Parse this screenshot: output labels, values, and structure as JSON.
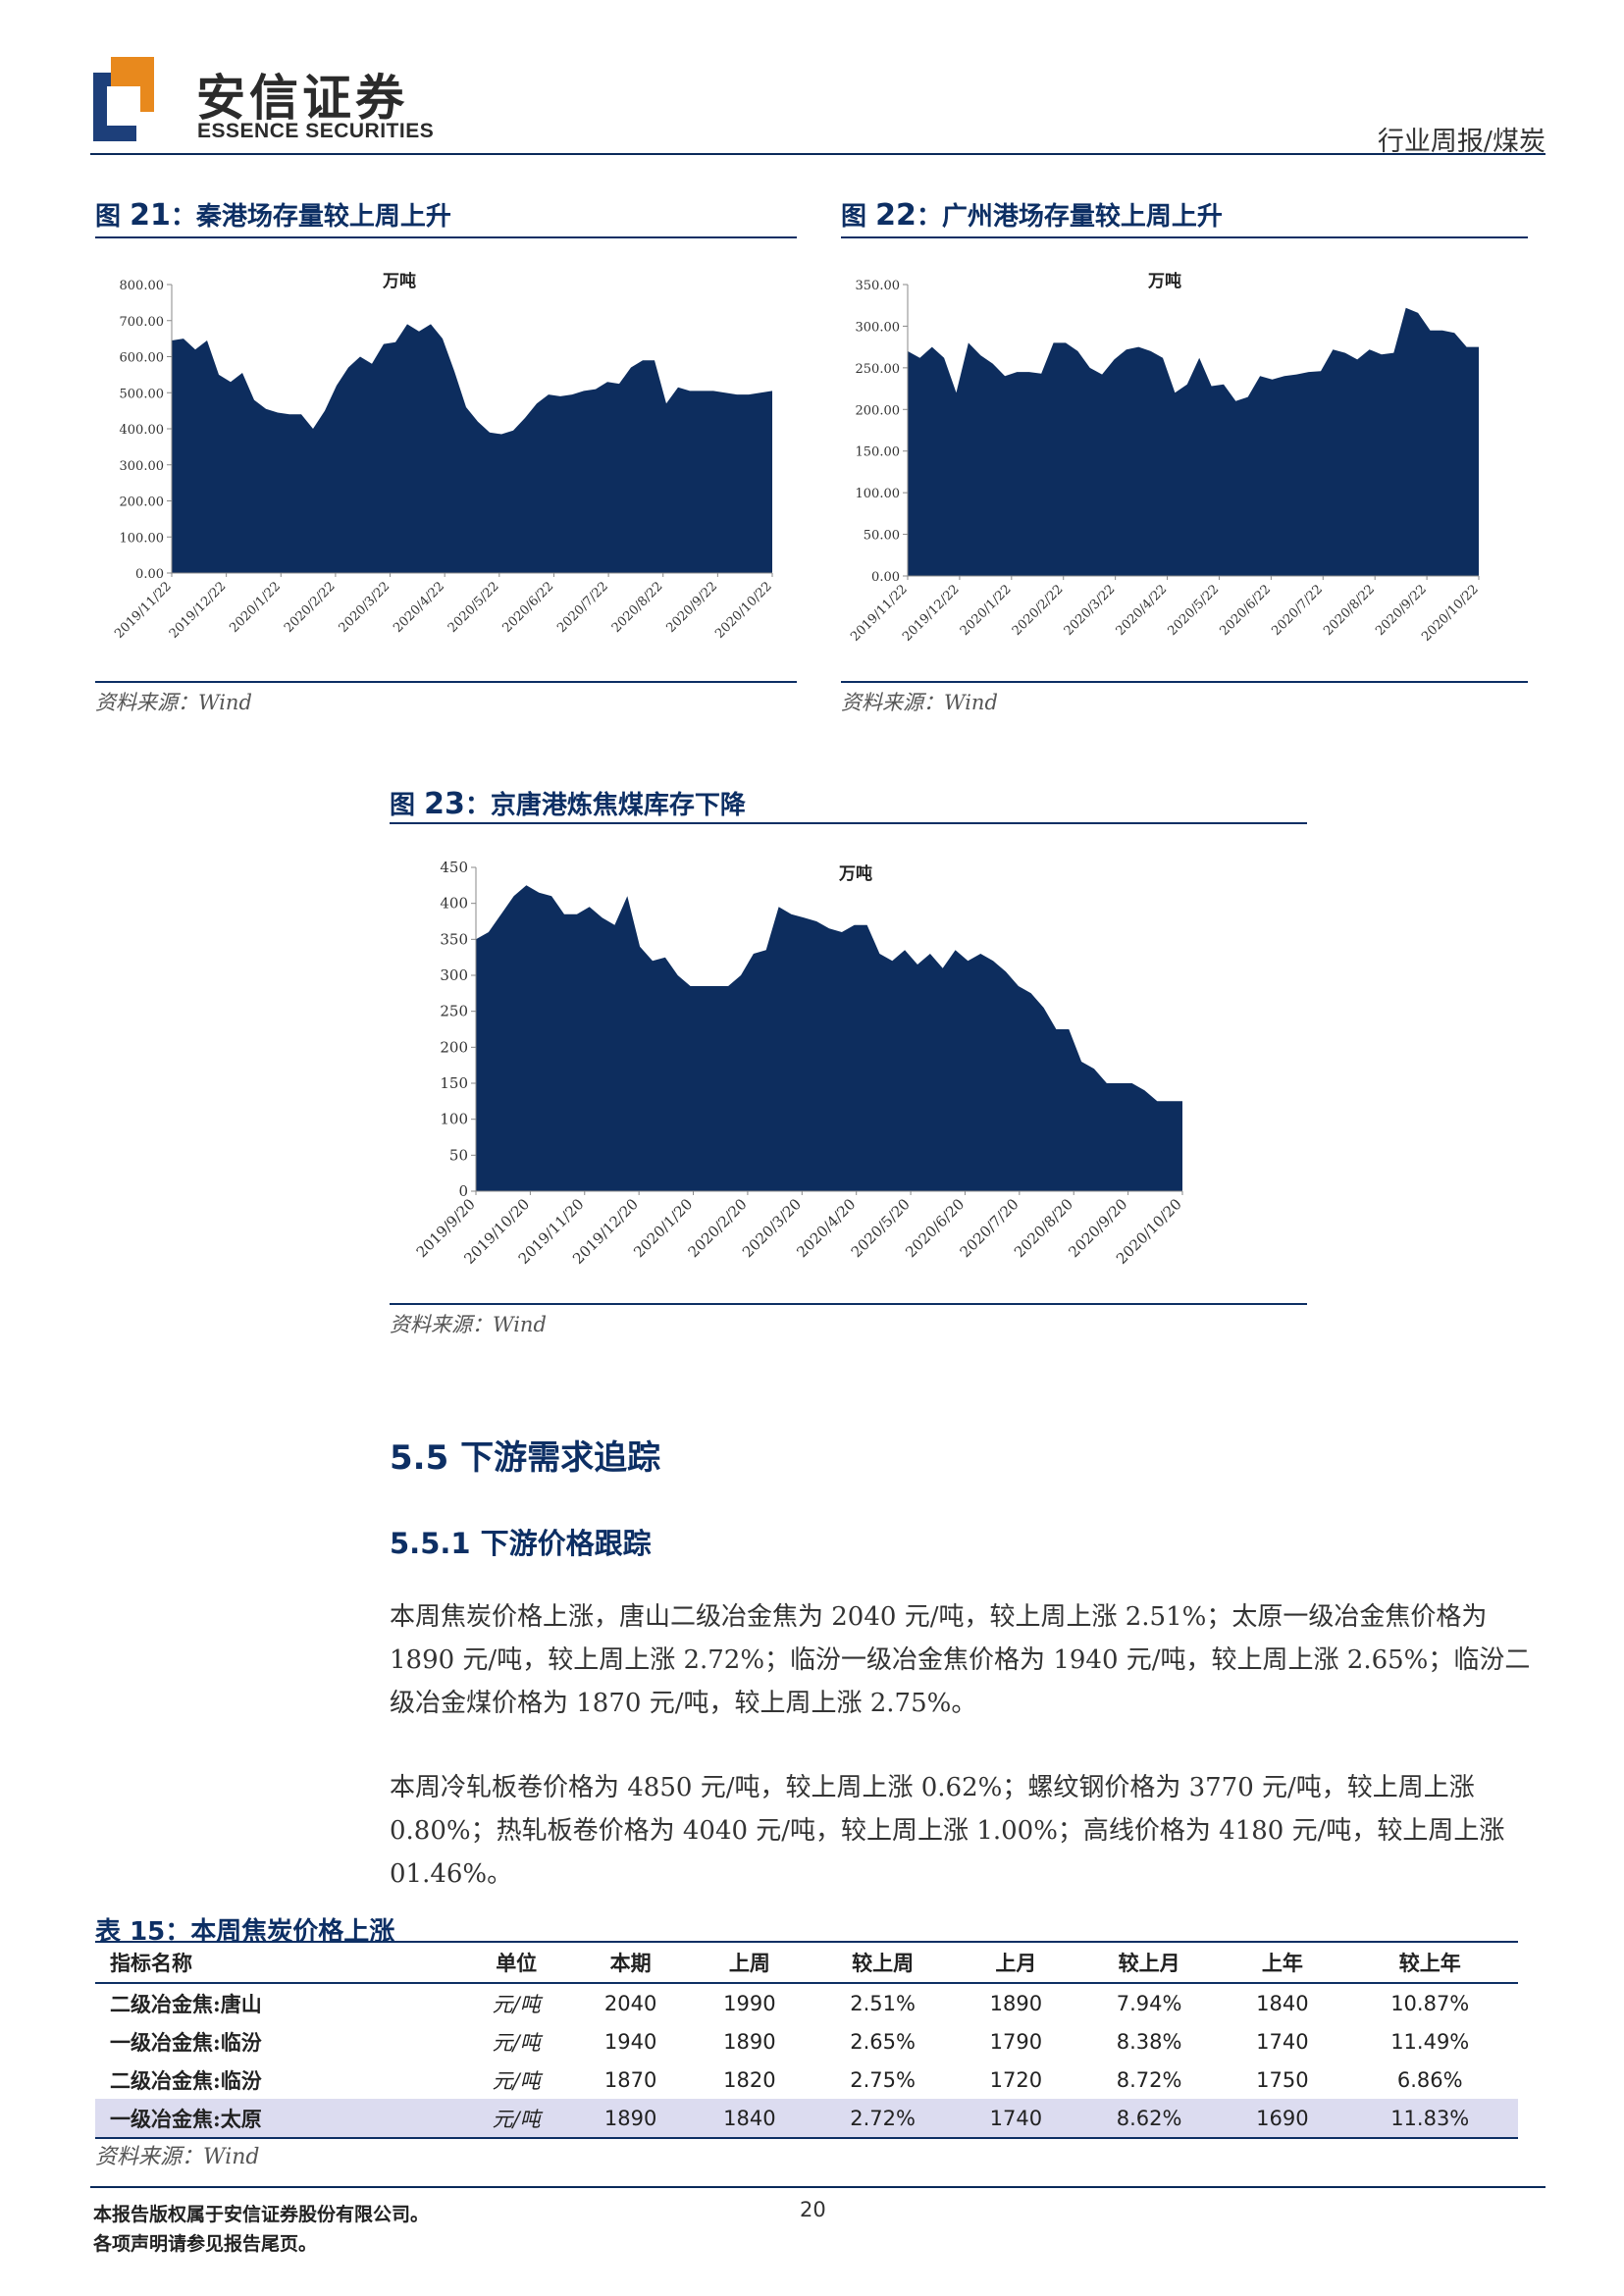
{
  "header": {
    "brand_cn": "安信证券",
    "brand_en": "ESSENCE SECURITIES",
    "report_type": "行业周报/煤炭"
  },
  "figures": [
    {
      "label": "图",
      "num": "21",
      "title": "：秦港场存量较上周上升",
      "unit": "万吨",
      "source": "资料来源：Wind"
    },
    {
      "label": "图",
      "num": "22",
      "title": "：广州港场存量较上周上升",
      "unit": "万吨",
      "source": "资料来源：Wind"
    },
    {
      "label": "图",
      "num": "23",
      "title": "：京唐港炼焦煤库存下降",
      "unit": "万吨",
      "source": "资料来源：Wind"
    }
  ],
  "chart_data": [
    {
      "type": "area",
      "title": "秦港场存量较上周上升",
      "unit": "万吨",
      "ylim": [
        0,
        800
      ],
      "yticks": [
        "0.00",
        "100.00",
        "200.00",
        "300.00",
        "400.00",
        "500.00",
        "600.00",
        "700.00",
        "800.00"
      ],
      "xticks": [
        "2019/11/22",
        "2019/12/22",
        "2020/1/22",
        "2020/2/22",
        "2020/3/22",
        "2020/4/22",
        "2020/5/22",
        "2020/6/22",
        "2020/7/22",
        "2020/8/22",
        "2020/9/22",
        "2020/10/22"
      ],
      "color": "#0d2d5e",
      "values": [
        645,
        650,
        620,
        645,
        550,
        530,
        555,
        480,
        455,
        445,
        440,
        440,
        400,
        450,
        520,
        570,
        600,
        580,
        635,
        640,
        690,
        670,
        690,
        650,
        560,
        460,
        420,
        390,
        385,
        395,
        430,
        470,
        495,
        490,
        495,
        505,
        510,
        530,
        525,
        570,
        590,
        590,
        470,
        515,
        505,
        505,
        505,
        500,
        495,
        495,
        500,
        505
      ]
    },
    {
      "type": "area",
      "title": "广州港场存量较上周上升",
      "unit": "万吨",
      "ylim": [
        0,
        350
      ],
      "yticks": [
        "0.00",
        "50.00",
        "100.00",
        "150.00",
        "200.00",
        "250.00",
        "300.00",
        "350.00"
      ],
      "xticks": [
        "2019/11/22",
        "2019/12/22",
        "2020/1/22",
        "2020/2/22",
        "2020/3/22",
        "2020/4/22",
        "2020/5/22",
        "2020/6/22",
        "2020/7/22",
        "2020/8/22",
        "2020/9/22",
        "2020/10/22"
      ],
      "color": "#0d2d5e",
      "values": [
        270,
        262,
        275,
        262,
        220,
        280,
        265,
        255,
        240,
        245,
        245,
        243,
        280,
        280,
        270,
        250,
        242,
        260,
        272,
        275,
        270,
        262,
        220,
        230,
        262,
        228,
        230,
        210,
        215,
        240,
        236,
        240,
        242,
        245,
        246,
        272,
        268,
        260,
        272,
        266,
        268,
        322,
        316,
        295,
        295,
        292,
        275,
        275
      ]
    },
    {
      "type": "area",
      "title": "京唐港炼焦煤库存下降",
      "unit": "万吨",
      "ylim": [
        0,
        450
      ],
      "yticks": [
        "0",
        "50",
        "100",
        "150",
        "200",
        "250",
        "300",
        "350",
        "400",
        "450"
      ],
      "xticks": [
        "2019/9/20",
        "2019/10/20",
        "2019/11/20",
        "2019/12/20",
        "2020/1/20",
        "2020/2/20",
        "2020/3/20",
        "2020/4/20",
        "2020/5/20",
        "2020/6/20",
        "2020/7/20",
        "2020/8/20",
        "2020/9/20",
        "2020/10/20"
      ],
      "color": "#0d2d5e",
      "values": [
        350,
        360,
        385,
        410,
        425,
        415,
        410,
        385,
        385,
        395,
        380,
        370,
        410,
        340,
        320,
        325,
        300,
        285,
        285,
        285,
        285,
        300,
        330,
        335,
        395,
        385,
        380,
        375,
        365,
        360,
        370,
        370,
        330,
        320,
        335,
        315,
        330,
        310,
        335,
        320,
        330,
        320,
        305,
        285,
        275,
        255,
        225,
        225,
        180,
        170,
        150,
        150,
        150,
        140,
        125,
        125,
        125
      ]
    }
  ],
  "section": {
    "h1_num": "5.5",
    "h1_text": " 下游需求追踪",
    "h2_num": "5.5.1",
    "h2_text": " 下游价格跟踪",
    "para1": "本周焦炭价格上涨，唐山二级冶金焦为 2040 元/吨，较上周上涨 2.51%；太原一级冶金焦价格为 1890 元/吨，较上周上涨 2.72%；临汾一级冶金焦价格为 1940 元/吨，较上周上涨 2.65%；临汾二级冶金煤价格为 1870 元/吨，较上周上涨 2.75%。",
    "para2": "本周冷轧板卷价格为 4850 元/吨，较上周上涨 0.62%；螺纹钢价格为 3770 元/吨，较上周上涨 0.80%；热轧板卷价格为 4040 元/吨，较上周上涨 1.00%；高线价格为 4180 元/吨，较上周上涨 01.46%。"
  },
  "table": {
    "title_label": "表",
    "title_num": "15",
    "title_text": "：本周焦炭价格上涨",
    "headers": [
      "指标名称",
      "单位",
      "本期",
      "上周",
      "较上周",
      "上月",
      "较上月",
      "上年",
      "较上年"
    ],
    "rows": [
      [
        "二级冶金焦:唐山",
        "元/吨",
        "2040",
        "1990",
        "2.51%",
        "1890",
        "7.94%",
        "1840",
        "10.87%"
      ],
      [
        "一级冶金焦:临汾",
        "元/吨",
        "1940",
        "1890",
        "2.65%",
        "1790",
        "8.38%",
        "1740",
        "11.49%"
      ],
      [
        "二级冶金焦:临汾",
        "元/吨",
        "1870",
        "1820",
        "2.75%",
        "1720",
        "8.72%",
        "1750",
        "6.86%"
      ],
      [
        "一级冶金焦:太原",
        "元/吨",
        "1890",
        "1840",
        "2.72%",
        "1740",
        "8.62%",
        "1690",
        "11.83%"
      ]
    ],
    "source": "资料来源：Wind"
  },
  "footer": {
    "line1": "本报告版权属于安信证券股份有限公司。",
    "line2": "各项声明请参见报告尾页。",
    "page": "20"
  }
}
